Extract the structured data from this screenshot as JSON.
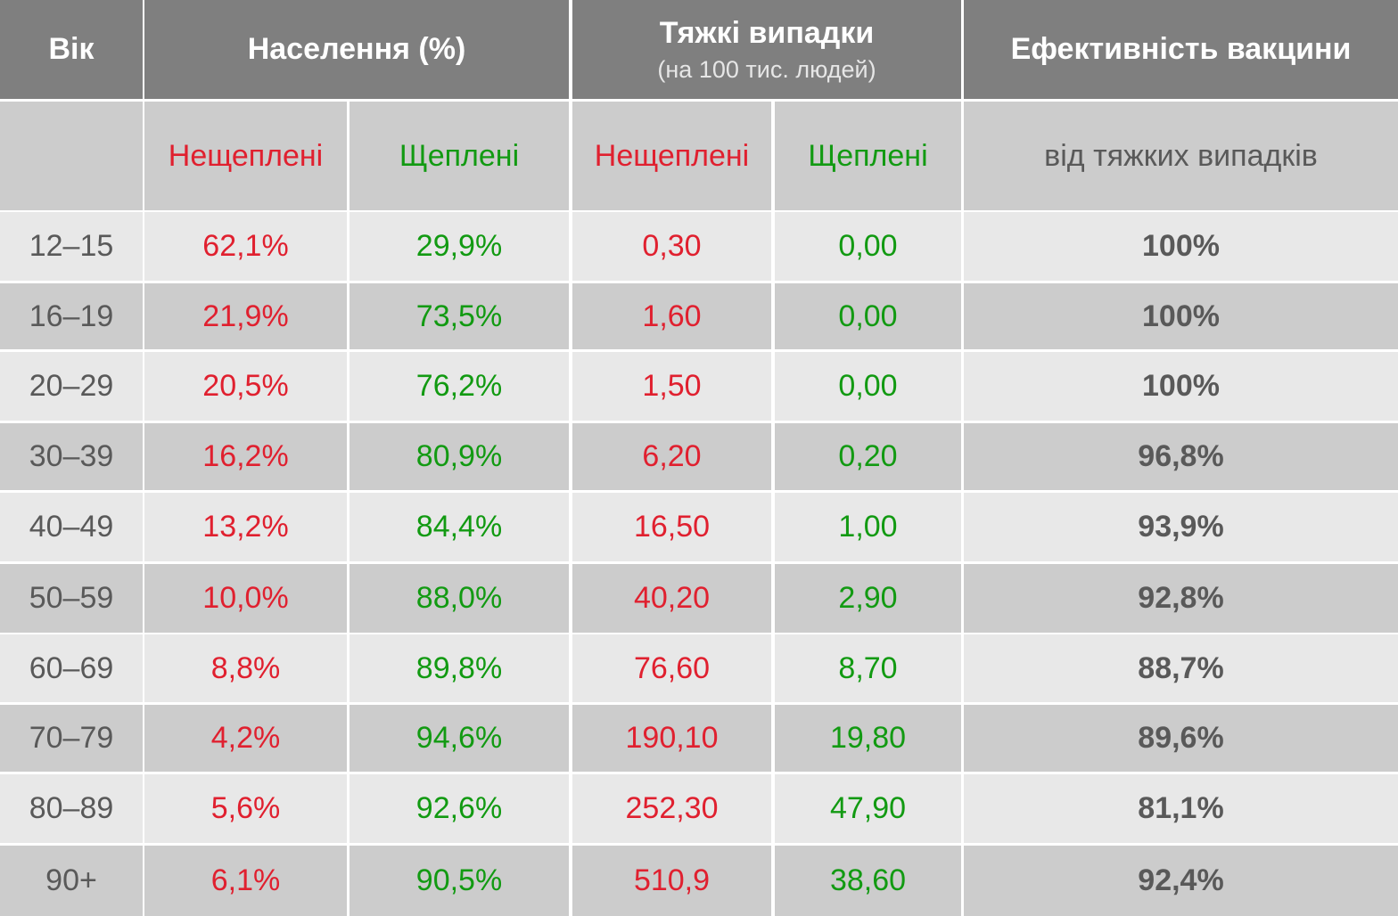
{
  "header": {
    "age": "Вік",
    "population": "Населення (%)",
    "severe": "Тяжкі випадки",
    "severe_note": "(на 100 тис. людей)",
    "efficacy": "Ефективність вакцини"
  },
  "subheader": [
    "Нещеплені",
    "Щеплені",
    "Нещеплені",
    "Щеплені",
    "від тяжких випадків"
  ],
  "table": {
    "rows": [
      [
        "12–15",
        "62,1%",
        "29,9%",
        "0,30",
        "0,00",
        "100%"
      ],
      [
        "16–19",
        "21,9%",
        "73,5%",
        "1,60",
        "0,00",
        "100%"
      ],
      [
        "20–29",
        "20,5%",
        "76,2%",
        "1,50",
        "0,00",
        "100%"
      ],
      [
        "30–39",
        "16,2%",
        "80,9%",
        "6,20",
        "0,20",
        "96,8%"
      ],
      [
        "40–49",
        "13,2%",
        "84,4%",
        "16,50",
        "1,00",
        "93,9%"
      ],
      [
        "50–59",
        "10,0%",
        "88,0%",
        "40,20",
        "2,90",
        "92,8%"
      ],
      [
        "60–69",
        "8,8%",
        "89,8%",
        "76,60",
        "8,70",
        "88,7%"
      ],
      [
        "70–79",
        "4,2%",
        "94,6%",
        "190,10",
        "19,80",
        "89,6%"
      ],
      [
        "80–89",
        "5,6%",
        "92,6%",
        "252,30",
        "47,90",
        "81,1%"
      ],
      [
        "90+",
        "6,1%",
        "90,5%",
        "510,9",
        "38,60",
        "92,4%"
      ]
    ]
  }
}
